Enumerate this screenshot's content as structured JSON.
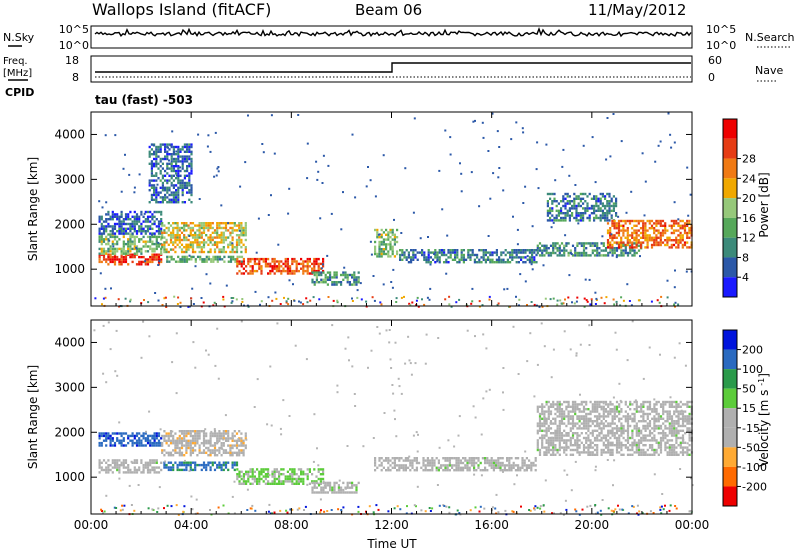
{
  "header": {
    "station": "Wallops Island (fitACF)",
    "beam": "Beam 06",
    "date": "11/May/2012"
  },
  "noise_panel": {
    "left_label": "N.Sky",
    "left_ticks": [
      "10^5",
      "10^0"
    ],
    "right_ticks": [
      "10^5",
      "10^0"
    ],
    "right_label": "N.Search"
  },
  "freq_panel": {
    "left_label_1": "Freq.",
    "left_label_2": "[MHz]",
    "left_ticks": [
      "18",
      "8"
    ],
    "right_ticks": [
      "60",
      "0"
    ],
    "right_label": "Nave",
    "cpid_label": "CPID",
    "cpid_value": "tau (fast) -503"
  },
  "x_axis": {
    "label": "Time UT",
    "ticks": [
      "00:00",
      "04:00",
      "08:00",
      "12:00",
      "16:00",
      "20:00",
      "00:00"
    ]
  },
  "colors": {
    "power_scale": [
      "#1a1aff",
      "#2b58a8",
      "#3c8a7a",
      "#56a85a",
      "#96c87a",
      "#f0a800",
      "#f07a14",
      "#e63c14",
      "#ee0000"
    ],
    "velocity_scale": [
      "#ee0000",
      "#ff6a00",
      "#ffaa33",
      "#b0b0b0",
      "#b0b0b0",
      "#5ccc3a",
      "#2a9a4a",
      "#2a6ac0",
      "#0014dd"
    ],
    "gray": "#b4b4b4"
  },
  "chart_data": [
    {
      "type": "heatmap",
      "name": "power",
      "ylabel": "Slant Range [km]",
      "xlabel": "Time UT",
      "x_range": [
        "00:00",
        "24:00"
      ],
      "ylim": [
        180,
        4500
      ],
      "yticks": [
        "1000",
        "2000",
        "3000",
        "4000"
      ],
      "colorbar_label": "Power [dB]",
      "colorbar_ticks": [
        "4",
        "8",
        "12",
        "16",
        "20",
        "24",
        "28"
      ],
      "colorbar_range": [
        0,
        32
      ],
      "features": [
        {
          "t_start": 0.3,
          "t_end": 2.8,
          "range": [
            1100,
            1350
          ],
          "value": 28
        },
        {
          "t_start": 0.3,
          "t_end": 2.8,
          "range": [
            1350,
            1800
          ],
          "value": 14
        },
        {
          "t_start": 0.3,
          "t_end": 2.8,
          "range": [
            1800,
            2300
          ],
          "value": 6
        },
        {
          "t_start": 2.8,
          "t_end": 6.2,
          "range": [
            1400,
            2050
          ],
          "value": 18
        },
        {
          "t_start": 3.0,
          "t_end": 6.0,
          "range": [
            1150,
            1300
          ],
          "value": 12
        },
        {
          "t_start": 5.8,
          "t_end": 9.3,
          "range": [
            900,
            1250
          ],
          "value": 26
        },
        {
          "t_start": 8.8,
          "t_end": 10.7,
          "range": [
            650,
            950
          ],
          "value": 10
        },
        {
          "t_start": 11.3,
          "t_end": 12.2,
          "range": [
            1300,
            1900
          ],
          "value": 14
        },
        {
          "t_start": 12.3,
          "t_end": 17.8,
          "range": [
            1150,
            1450
          ],
          "value": 8
        },
        {
          "t_start": 17.8,
          "t_end": 22.0,
          "range": [
            1300,
            1600
          ],
          "value": 10
        },
        {
          "t_start": 18.2,
          "t_end": 21.0,
          "range": [
            2100,
            2700
          ],
          "value": 8
        },
        {
          "t_start": 20.6,
          "t_end": 24.0,
          "range": [
            1500,
            2100
          ],
          "value": 24
        },
        {
          "t_start": 2.3,
          "t_end": 4.0,
          "range": [
            2500,
            3800
          ],
          "value": 6
        }
      ]
    },
    {
      "type": "heatmap",
      "name": "velocity",
      "ylabel": "Slant Range [km]",
      "xlabel": "Time UT",
      "x_range": [
        "00:00",
        "24:00"
      ],
      "ylim": [
        180,
        4500
      ],
      "yticks": [
        "1000",
        "2000",
        "3000",
        "4000"
      ],
      "colorbar_label": "Velocity [m s^-1]",
      "colorbar_ticks": [
        "200",
        "100",
        "50",
        "15",
        "-15",
        "-50",
        "-100",
        "-200"
      ],
      "colorbar_range": [
        -250,
        250
      ],
      "features": [
        {
          "t_start": 0.3,
          "t_end": 2.8,
          "range": [
            1700,
            2000
          ],
          "value": 180
        },
        {
          "t_start": 0.3,
          "t_end": 2.8,
          "range": [
            1100,
            1400
          ],
          "value": 0
        },
        {
          "t_start": 2.8,
          "t_end": 5.8,
          "range": [
            1150,
            1350
          ],
          "value": 150
        },
        {
          "t_start": 2.8,
          "t_end": 6.2,
          "range": [
            1500,
            2050
          ],
          "value": -60
        },
        {
          "t_start": 5.8,
          "t_end": 9.3,
          "range": [
            850,
            1200
          ],
          "value": 40
        },
        {
          "t_start": 8.8,
          "t_end": 10.7,
          "range": [
            650,
            900
          ],
          "value": 5
        },
        {
          "t_start": 11.3,
          "t_end": 17.8,
          "range": [
            1150,
            1450
          ],
          "value": 0
        },
        {
          "t_start": 17.8,
          "t_end": 24.0,
          "range": [
            1500,
            2700
          ],
          "value": 0
        }
      ]
    }
  ]
}
